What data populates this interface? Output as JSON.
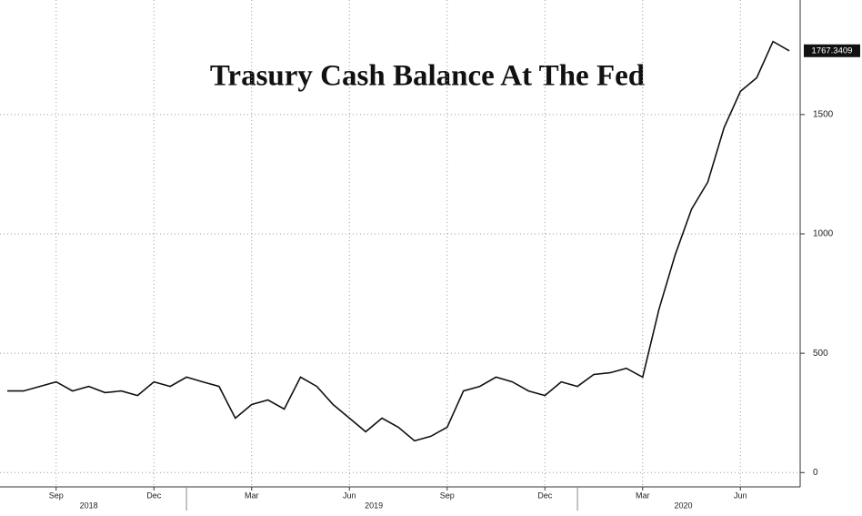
{
  "chart_data": {
    "type": "line",
    "title": "Trasury Cash Balance At The Fed",
    "x": [
      "2018-07",
      "2018-08",
      "2018-08",
      "2018-09",
      "2018-09",
      "2018-10",
      "2018-10",
      "2018-11",
      "2018-11",
      "2018-12",
      "2018-12",
      "2019-01",
      "2019-01",
      "2019-02",
      "2019-02",
      "2019-03",
      "2019-03",
      "2019-04",
      "2019-04",
      "2019-05",
      "2019-05",
      "2019-06",
      "2019-06",
      "2019-07",
      "2019-07",
      "2019-08",
      "2019-08",
      "2019-09",
      "2019-09",
      "2019-10",
      "2019-10",
      "2019-11",
      "2019-11",
      "2019-12",
      "2019-12",
      "2020-01",
      "2020-01",
      "2020-02",
      "2020-02",
      "2020-03",
      "2020-03",
      "2020-04",
      "2020-04",
      "2020-05",
      "2020-05",
      "2020-06",
      "2020-06",
      "2020-07",
      "2020-07"
    ],
    "series": [
      {
        "color": "#111111",
        "values": [
          342,
          342,
          361,
          380,
          342,
          361,
          335,
          342,
          323,
          380,
          361,
          400,
          380,
          361,
          228,
          285,
          304,
          266,
          400,
          361,
          285,
          228,
          171,
          228,
          190,
          133,
          152,
          190,
          342,
          361,
          400,
          380,
          342,
          323,
          380,
          361,
          411,
          418,
          437,
          400,
          684,
          913,
          1103,
          1217,
          1445,
          1597,
          1654,
          1806,
          1767.3409
        ]
      }
    ],
    "ylim": [
      -60,
      1980
    ],
    "yticks": [
      0,
      500,
      1000,
      1500
    ],
    "xticks": [
      {
        "value": "2018-09",
        "label": "Sep"
      },
      {
        "value": "2018-12",
        "label": "Dec"
      },
      {
        "value": "2019-03",
        "label": "Mar"
      },
      {
        "value": "2019-06",
        "label": "Jun"
      },
      {
        "value": "2019-09",
        "label": "Sep"
      },
      {
        "value": "2019-12",
        "label": "Dec"
      },
      {
        "value": "2020-03",
        "label": "Mar"
      },
      {
        "value": "2020-06",
        "label": "Jun"
      }
    ],
    "year_ticks": [
      "2018",
      "2019",
      "2020"
    ],
    "grid": true
  }
}
